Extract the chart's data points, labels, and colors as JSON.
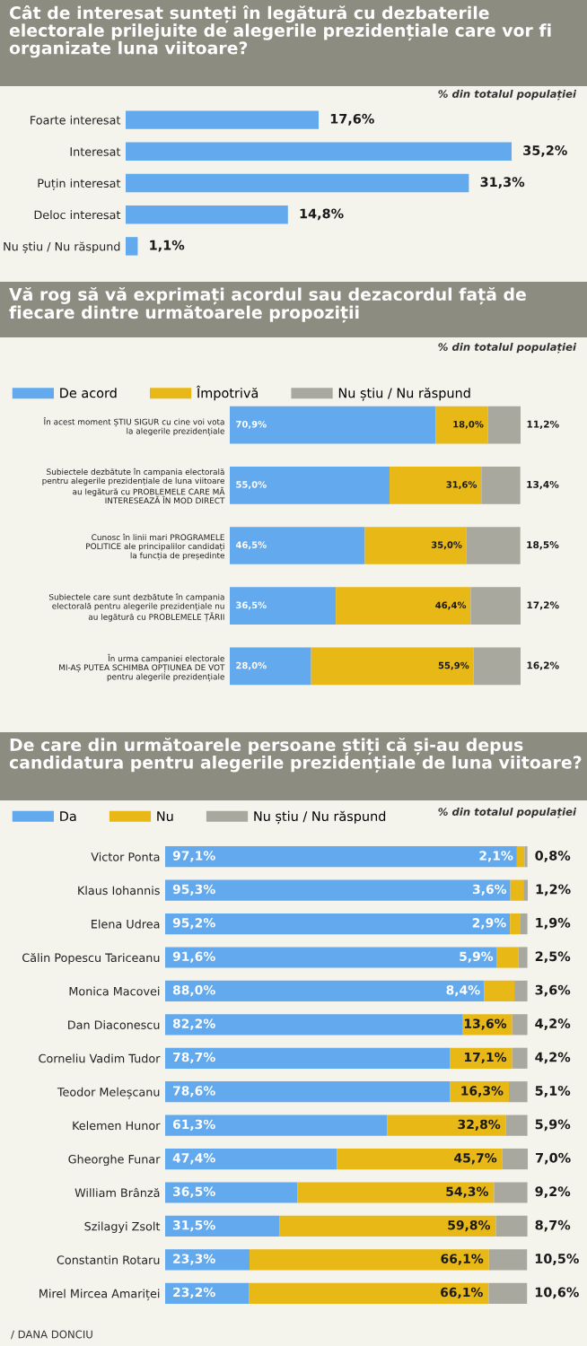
{
  "chart_data": [
    {
      "type": "bar",
      "orientation": "horizontal",
      "title": "Cât de interesat sunteți în legătură cu dezbaterile electorale prilejuite de alegerile prezidențiale care vor fi organizate luna viitoare?",
      "categories": [
        "Foarte interesat",
        "Interesat",
        "Puțin interesat",
        "Deloc interesat",
        "Nu știu / Nu răspund"
      ],
      "series": [
        {
          "color": "#62a9ee",
          "values": [
            17.6,
            35.2,
            31.3,
            14.8,
            1.1
          ],
          "value_labels": [
            "17,6%",
            "35,2%",
            "31,3%",
            "14,8%",
            "1,1%"
          ]
        }
      ],
      "tick_labels": "y",
      "annotations": [
        "% din totalul populației"
      ]
    },
    {
      "type": "bar",
      "orientation": "horizontal",
      "stacked": true,
      "title": "Vă rog să vă exprimați acordul sau dezacordul față de fiecare dintre următoarele propoziții",
      "categories": [
        "În acest moment ȘTIU SIGUR cu cine voi vota\nla alegerile prezidențiale",
        "Subiectele dezbătute în campania electorală\npentru alegerile prezidențiale de luna viitoare\nau legătură cu PROBLEMELE CARE MĂ\nINTERESEAZĂ ÎN MOD DIRECT",
        "Cunosc în linii mari PROGRAMELE\nPOLITICE ale principalilor candidați\nla funcția de președinte",
        "Subiectele care sunt dezbătute în campania\nelectorală pentru alegerile prezidențiale nu\nau legătură cu PROBLEMELE ȚĂRII",
        "În urma campaniei electorale\nMI-AȘ PUTEA SCHIMBA OPȚIUNEA DE VOT\npentru alegerile prezidențiale"
      ],
      "series": [
        {
          "name": "De acord",
          "color": "#62a9ee",
          "values": [
            70.9,
            55.0,
            46.5,
            36.5,
            28.0
          ],
          "value_labels": [
            "70,9%",
            "55,0%",
            "46,5%",
            "36,5%",
            "28,0%"
          ]
        },
        {
          "name": "Împotrivă",
          "color": "#e8b816",
          "values": [
            18.0,
            31.6,
            35.0,
            46.4,
            55.9
          ],
          "value_labels": [
            "18,0%",
            "31,6%",
            "35,0%",
            "46,4%",
            "55,9%"
          ]
        },
        {
          "name": "Nu știu / Nu răspund",
          "color": "#a9a89f",
          "values": [
            11.2,
            13.4,
            18.5,
            17.2,
            16.2
          ],
          "value_labels": [
            "11,2%",
            "13,4%",
            "18,5%",
            "17,2%",
            "16,2%"
          ]
        }
      ],
      "tick_labels": "y",
      "legend": "top left",
      "annotations": [
        "% din totalul populației"
      ]
    },
    {
      "type": "bar",
      "orientation": "horizontal",
      "stacked": true,
      "title": "De care din următoarele persoane știți că și-au depus candidatura pentru alegerile prezidențiale de luna viitoare?",
      "categories": [
        "Victor Ponta",
        "Klaus Iohannis",
        "Elena Udrea",
        "Călin Popescu Tariceanu",
        "Monica Macovei",
        "Dan Diaconescu",
        "Corneliu Vadim Tudor",
        "Teodor Meleșcanu",
        "Kelemen Hunor",
        "Gheorghe Funar",
        "William Brânză",
        "Szilagyi Zsolt",
        "Constantin Rotaru",
        "Mirel Mircea Amariței"
      ],
      "series": [
        {
          "name": "Da",
          "color": "#62a9ee",
          "values": [
            97.1,
            95.3,
            95.2,
            91.6,
            88.0,
            82.2,
            78.7,
            78.6,
            61.3,
            47.4,
            36.5,
            31.5,
            23.3,
            23.2
          ],
          "value_labels": [
            "97,1%",
            "95,3%",
            "95,2%",
            "91,6%",
            "88,0%",
            "82,2%",
            "78,7%",
            "78,6%",
            "61,3%",
            "47,4%",
            "36,5%",
            "31,5%",
            "23,3%",
            "23,2%"
          ]
        },
        {
          "name": "Nu",
          "color": "#e8b816",
          "values": [
            2.1,
            3.6,
            2.9,
            5.9,
            8.4,
            13.6,
            17.1,
            16.3,
            32.8,
            45.7,
            54.3,
            59.8,
            66.1,
            66.1
          ],
          "value_labels": [
            "2,1%",
            "3,6%",
            "2,9%",
            "5,9%",
            "8,4%",
            "13,6%",
            "17,1%",
            "16,3%",
            "32,8%",
            "45,7%",
            "54,3%",
            "59,8%",
            "66,1%",
            "66,1%"
          ]
        },
        {
          "name": "Nu știu / Nu răspund",
          "color": "#a9a89f",
          "values": [
            0.8,
            1.2,
            1.9,
            2.5,
            3.6,
            4.2,
            4.2,
            5.1,
            5.9,
            7.0,
            9.2,
            8.7,
            10.5,
            10.6
          ],
          "value_labels": [
            "0,8%",
            "1,2%",
            "1,9%",
            "2,5%",
            "3,6%",
            "4,2%",
            "4,2%",
            "5,1%",
            "5,9%",
            "7,0%",
            "9,2%",
            "8,7%",
            "10,5%",
            "10,6%"
          ]
        }
      ],
      "tick_labels": "y",
      "legend": "top left",
      "annotations": [
        "% din totalul populației",
        "/ DANA DONCIU"
      ]
    }
  ]
}
